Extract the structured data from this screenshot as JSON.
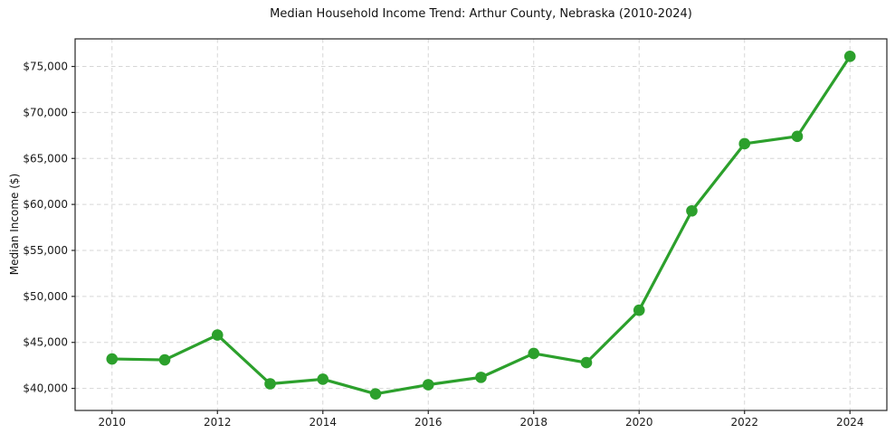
{
  "chart_data": {
    "type": "line",
    "title": "Median Household Income Trend: Arthur County, Nebraska (2010-2024)",
    "xlabel": "",
    "ylabel": "Median Income ($)",
    "x": [
      2010,
      2011,
      2012,
      2013,
      2014,
      2015,
      2016,
      2017,
      2018,
      2019,
      2020,
      2021,
      2022,
      2023,
      2024
    ],
    "values": [
      43200,
      43100,
      45800,
      40500,
      41000,
      39400,
      40400,
      41200,
      43800,
      42800,
      48500,
      59300,
      66600,
      67400,
      76100
    ],
    "x_tick_values": [
      2010,
      2012,
      2014,
      2016,
      2018,
      2020,
      2022,
      2024
    ],
    "x_tick_labels": [
      "2010",
      "2012",
      "2014",
      "2016",
      "2018",
      "2020",
      "2022",
      "2024"
    ],
    "y_tick_values": [
      40000,
      45000,
      50000,
      55000,
      60000,
      65000,
      70000,
      75000
    ],
    "y_tick_labels": [
      "$40,000",
      "$45,000",
      "$50,000",
      "$55,000",
      "$60,000",
      "$65,000",
      "$70,000",
      "$75,000"
    ],
    "xlim": [
      2009.3,
      2024.7
    ],
    "ylim": [
      37600,
      78000
    ],
    "grid": true,
    "grid_style": "dashed",
    "legend": "none",
    "marker": "circle",
    "line_color": "#2ca02c",
    "grid_color": "#d6d6d6",
    "spine_color": "#262626",
    "text_color": "#1a1a1a",
    "background_color": "#ffffff"
  }
}
